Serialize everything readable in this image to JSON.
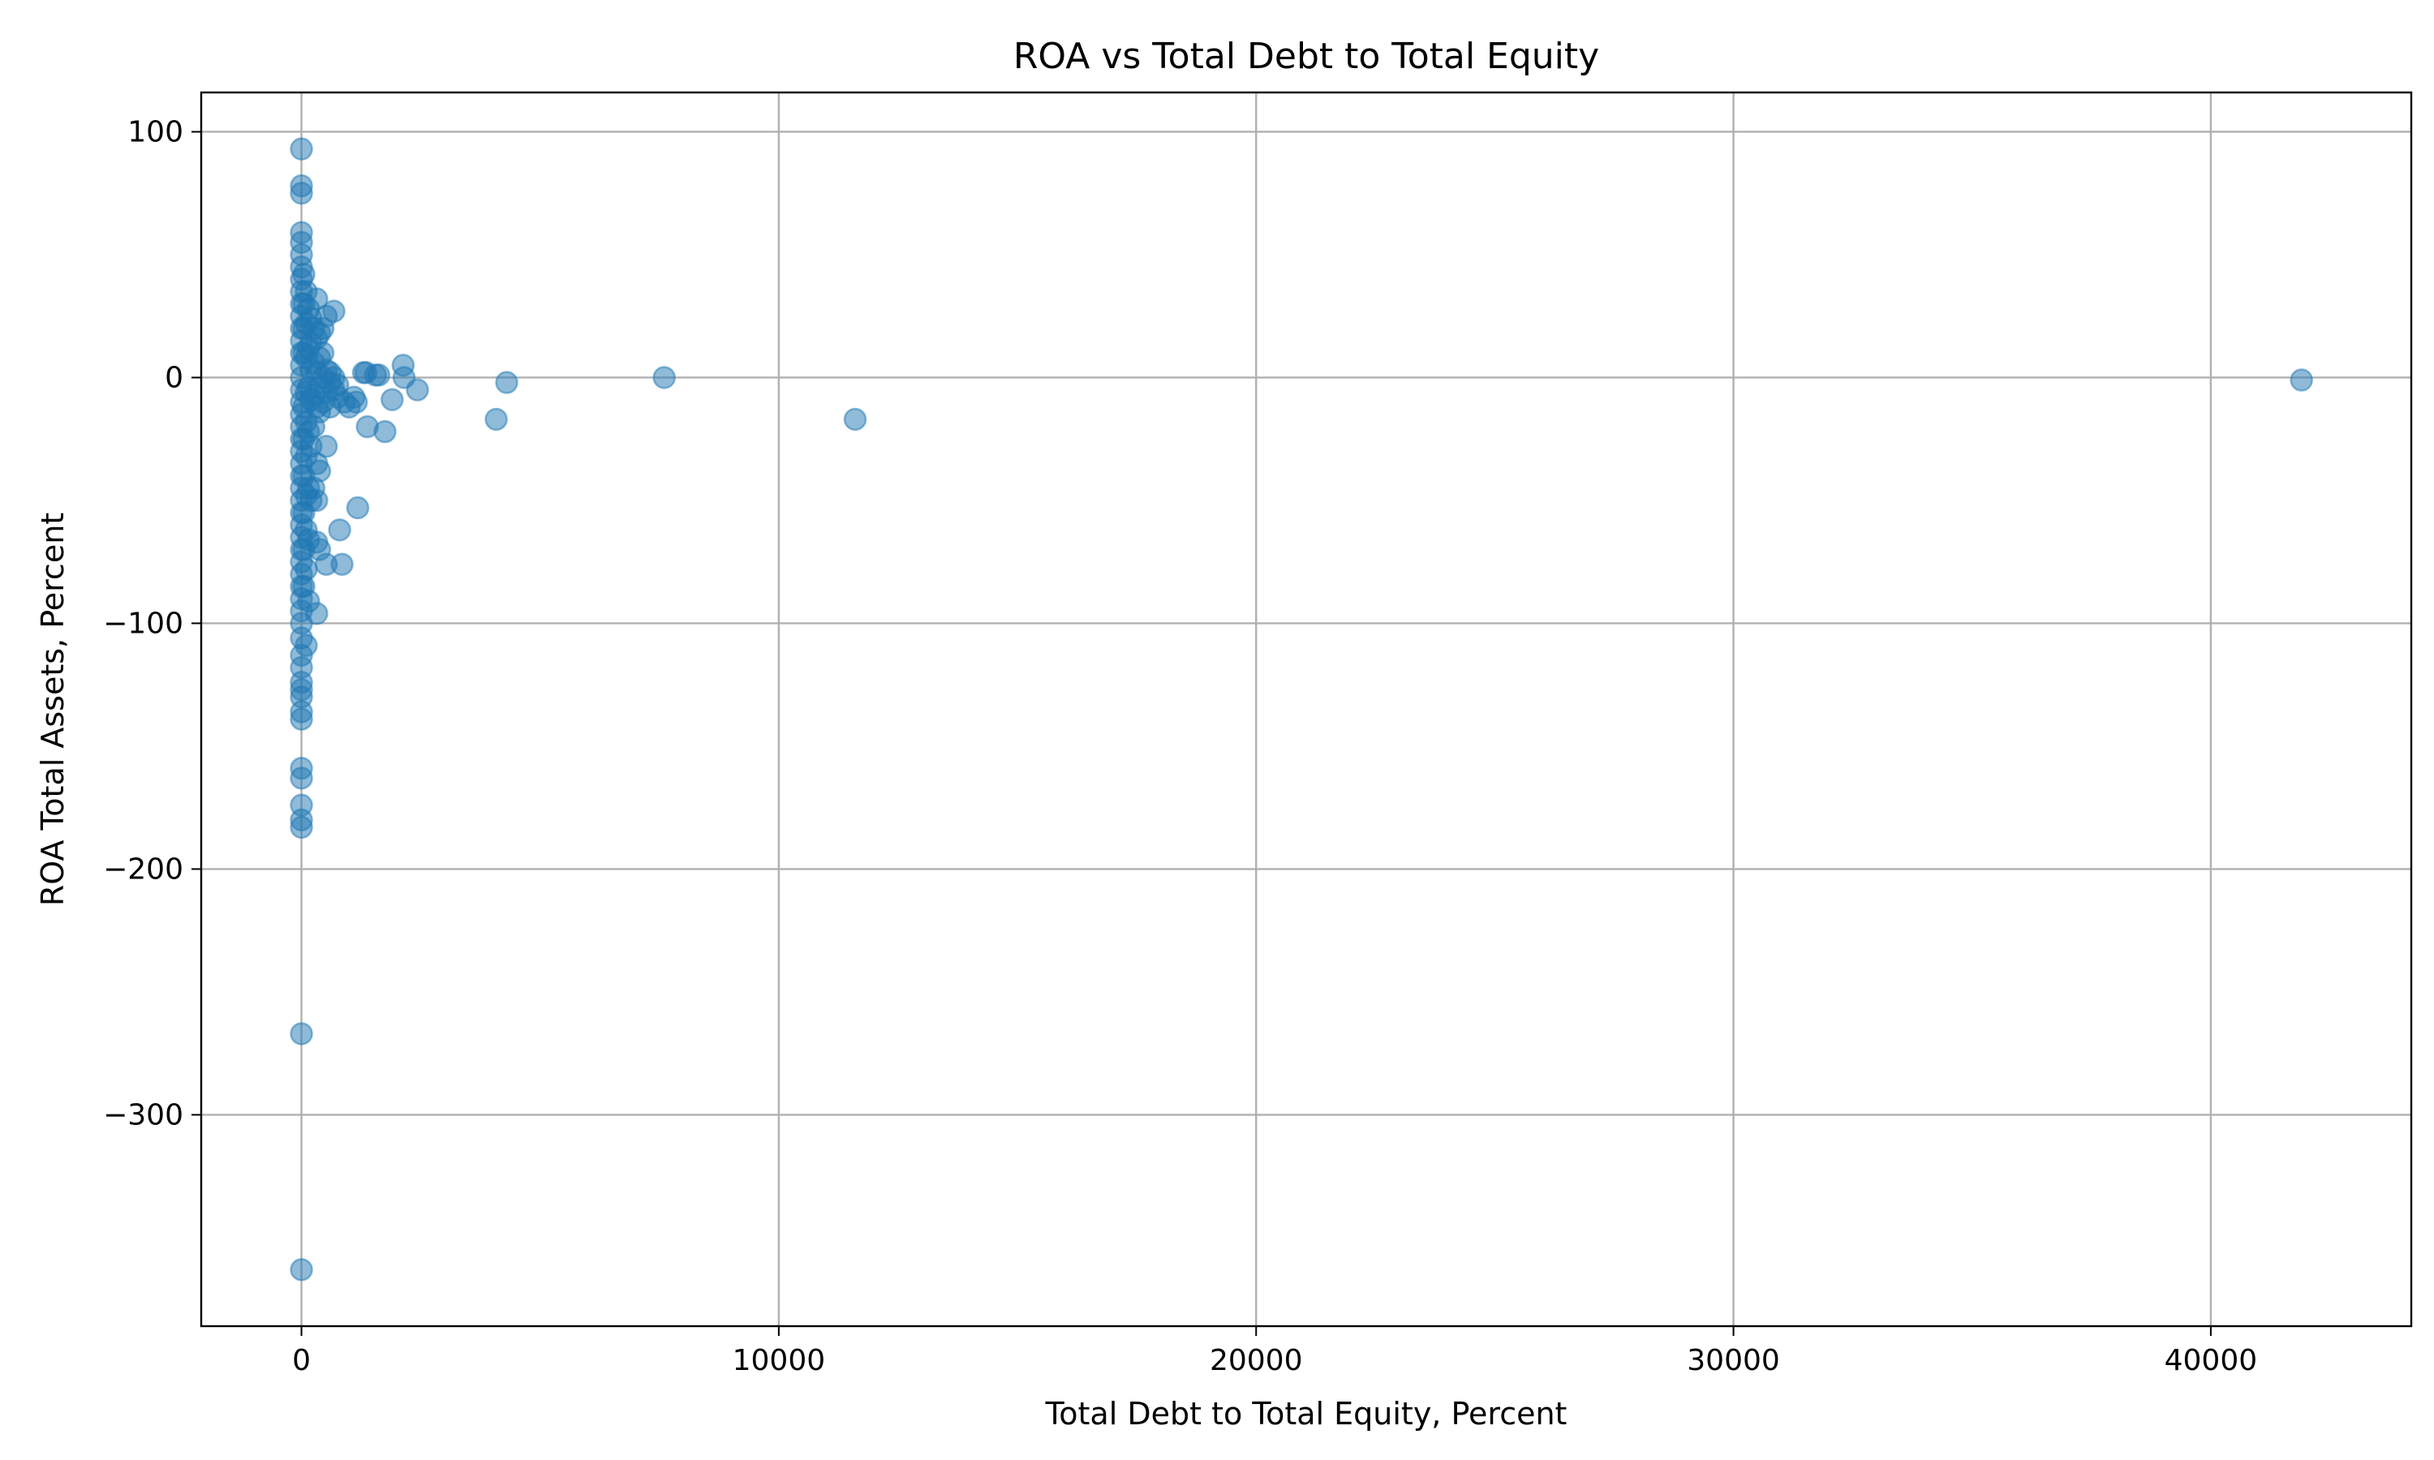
{
  "chart_data": {
    "type": "scatter",
    "title": "ROA vs Total Debt to Total Equity",
    "xlabel": "Total Debt to Total Equity, Percent",
    "ylabel": "ROA Total Assets, Percent",
    "xlim": [
      -2100,
      44200
    ],
    "ylim": [
      -386,
      116
    ],
    "xticks": [
      0,
      10000,
      20000,
      30000,
      40000
    ],
    "xtick_labels": [
      "0",
      "10000",
      "20000",
      "30000",
      "40000"
    ],
    "yticks": [
      100,
      0,
      -100,
      -200,
      -300
    ],
    "ytick_labels": [
      "100",
      "0",
      "−100",
      "−200",
      "−300"
    ],
    "grid": true,
    "color": "#1f77b4",
    "points": [
      {
        "x": 0,
        "y": 93
      },
      {
        "x": 0,
        "y": 78
      },
      {
        "x": 0,
        "y": 75
      },
      {
        "x": 0,
        "y": 59
      },
      {
        "x": 0,
        "y": 55
      },
      {
        "x": 0,
        "y": 50
      },
      {
        "x": 0,
        "y": 45
      },
      {
        "x": 0,
        "y": 40
      },
      {
        "x": 0,
        "y": 35
      },
      {
        "x": 0,
        "y": 30
      },
      {
        "x": 0,
        "y": 25
      },
      {
        "x": 0,
        "y": 20
      },
      {
        "x": 0,
        "y": 15
      },
      {
        "x": 0,
        "y": 10
      },
      {
        "x": 0,
        "y": 5
      },
      {
        "x": 0,
        "y": 0
      },
      {
        "x": 0,
        "y": -5
      },
      {
        "x": 0,
        "y": -10
      },
      {
        "x": 0,
        "y": -15
      },
      {
        "x": 0,
        "y": -20
      },
      {
        "x": 0,
        "y": -25
      },
      {
        "x": 0,
        "y": -30
      },
      {
        "x": 0,
        "y": -35
      },
      {
        "x": 0,
        "y": -40
      },
      {
        "x": 0,
        "y": -45
      },
      {
        "x": 0,
        "y": -50
      },
      {
        "x": 0,
        "y": -55
      },
      {
        "x": 0,
        "y": -60
      },
      {
        "x": 0,
        "y": -65
      },
      {
        "x": 0,
        "y": -70
      },
      {
        "x": 0,
        "y": -75
      },
      {
        "x": 0,
        "y": -80
      },
      {
        "x": 0,
        "y": -85
      },
      {
        "x": 0,
        "y": -90
      },
      {
        "x": 0,
        "y": -95
      },
      {
        "x": 0,
        "y": -100
      },
      {
        "x": 0,
        "y": -106
      },
      {
        "x": 0,
        "y": -113
      },
      {
        "x": 0,
        "y": -118
      },
      {
        "x": 0,
        "y": -124
      },
      {
        "x": 0,
        "y": -127
      },
      {
        "x": 0,
        "y": -130
      },
      {
        "x": 0,
        "y": -136
      },
      {
        "x": 0,
        "y": -139
      },
      {
        "x": 0,
        "y": -159
      },
      {
        "x": 0,
        "y": -163
      },
      {
        "x": 0,
        "y": -174
      },
      {
        "x": 0,
        "y": -180
      },
      {
        "x": 0,
        "y": -183
      },
      {
        "x": 0,
        "y": -267
      },
      {
        "x": 0,
        "y": -363
      },
      {
        "x": 50,
        "y": 42
      },
      {
        "x": 50,
        "y": 30
      },
      {
        "x": 50,
        "y": 20
      },
      {
        "x": 50,
        "y": 10
      },
      {
        "x": 50,
        "y": -12
      },
      {
        "x": 50,
        "y": -25
      },
      {
        "x": 50,
        "y": -40
      },
      {
        "x": 50,
        "y": -55
      },
      {
        "x": 50,
        "y": -70
      },
      {
        "x": 50,
        "y": -85
      },
      {
        "x": 100,
        "y": 35
      },
      {
        "x": 100,
        "y": 22
      },
      {
        "x": 100,
        "y": 8
      },
      {
        "x": 100,
        "y": -6
      },
      {
        "x": 100,
        "y": -18
      },
      {
        "x": 100,
        "y": -32
      },
      {
        "x": 100,
        "y": -48
      },
      {
        "x": 100,
        "y": -62
      },
      {
        "x": 100,
        "y": -78
      },
      {
        "x": 100,
        "y": -109
      },
      {
        "x": 150,
        "y": 28
      },
      {
        "x": 150,
        "y": 12
      },
      {
        "x": 150,
        "y": -4
      },
      {
        "x": 150,
        "y": -22
      },
      {
        "x": 150,
        "y": -45
      },
      {
        "x": 150,
        "y": -66
      },
      {
        "x": 150,
        "y": -91
      },
      {
        "x": 200,
        "y": 24
      },
      {
        "x": 200,
        "y": 14
      },
      {
        "x": 200,
        "y": 3
      },
      {
        "x": 200,
        "y": -9
      },
      {
        "x": 200,
        "y": -28
      },
      {
        "x": 200,
        "y": -50
      },
      {
        "x": 260,
        "y": 20
      },
      {
        "x": 260,
        "y": 6
      },
      {
        "x": 260,
        "y": -7
      },
      {
        "x": 260,
        "y": -20
      },
      {
        "x": 260,
        "y": -45
      },
      {
        "x": 320,
        "y": 32
      },
      {
        "x": 320,
        "y": 16
      },
      {
        "x": 320,
        "y": 2
      },
      {
        "x": 320,
        "y": -12
      },
      {
        "x": 320,
        "y": -35
      },
      {
        "x": 320,
        "y": -50
      },
      {
        "x": 320,
        "y": -67
      },
      {
        "x": 320,
        "y": -96
      },
      {
        "x": 380,
        "y": 18
      },
      {
        "x": 380,
        "y": 8
      },
      {
        "x": 380,
        "y": -4
      },
      {
        "x": 380,
        "y": -14
      },
      {
        "x": 380,
        "y": -38
      },
      {
        "x": 380,
        "y": -70
      },
      {
        "x": 450,
        "y": 20
      },
      {
        "x": 450,
        "y": 10
      },
      {
        "x": 450,
        "y": 0
      },
      {
        "x": 450,
        "y": -10
      },
      {
        "x": 520,
        "y": 25
      },
      {
        "x": 520,
        "y": 3
      },
      {
        "x": 520,
        "y": -6
      },
      {
        "x": 520,
        "y": -28
      },
      {
        "x": 520,
        "y": -76
      },
      {
        "x": 600,
        "y": 2
      },
      {
        "x": 600,
        "y": -2
      },
      {
        "x": 600,
        "y": -12
      },
      {
        "x": 680,
        "y": 27
      },
      {
        "x": 680,
        "y": 0
      },
      {
        "x": 680,
        "y": -5
      },
      {
        "x": 760,
        "y": -3
      },
      {
        "x": 760,
        "y": -8
      },
      {
        "x": 800,
        "y": -62
      },
      {
        "x": 850,
        "y": -76
      },
      {
        "x": 900,
        "y": -10
      },
      {
        "x": 1000,
        "y": -12
      },
      {
        "x": 1100,
        "y": -8
      },
      {
        "x": 1150,
        "y": -10
      },
      {
        "x": 1180,
        "y": -53
      },
      {
        "x": 1300,
        "y": 2
      },
      {
        "x": 1350,
        "y": 2
      },
      {
        "x": 1380,
        "y": -20
      },
      {
        "x": 1550,
        "y": 1
      },
      {
        "x": 1620,
        "y": 1
      },
      {
        "x": 1750,
        "y": -22
      },
      {
        "x": 1900,
        "y": -9
      },
      {
        "x": 2130,
        "y": 5
      },
      {
        "x": 2150,
        "y": 0
      },
      {
        "x": 2430,
        "y": -5
      },
      {
        "x": 4080,
        "y": -17
      },
      {
        "x": 4300,
        "y": -2
      },
      {
        "x": 7600,
        "y": 0
      },
      {
        "x": 11600,
        "y": -17
      },
      {
        "x": 41900,
        "y": -1
      }
    ]
  }
}
